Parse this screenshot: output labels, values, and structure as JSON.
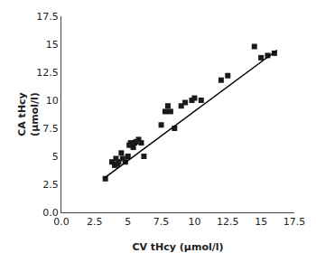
{
  "chart_data": {
    "type": "scatter",
    "xlabel": "CV tHcy (μmol/l)",
    "ylabel": "CA tHcy\n(μmol/l)",
    "xlim": [
      0.0,
      17.5
    ],
    "ylim": [
      0.0,
      17.5
    ],
    "xticks": [
      {
        "value": 0.0,
        "label": "0.0"
      },
      2.5,
      5,
      7.5,
      10,
      12.5,
      15,
      17.5
    ],
    "yticks": [
      {
        "value": 0.0,
        "label": "0.0"
      },
      2.5,
      5,
      7.5,
      10,
      12.5,
      15,
      17.5
    ],
    "grid": false,
    "series": [
      {
        "type": "scatter",
        "marker": "square",
        "color": "#1a1a1a",
        "x": [
          3.3,
          3.8,
          4.0,
          4.1,
          4.2,
          4.3,
          4.5,
          4.6,
          4.8,
          5.0,
          5.1,
          5.2,
          5.3,
          5.4,
          5.5,
          5.6,
          5.8,
          6.0,
          6.2,
          7.5,
          7.8,
          8.0,
          8.2,
          8.5,
          9.0,
          9.3,
          9.8,
          10.0,
          10.5,
          12.0,
          12.5,
          14.5,
          15.0,
          15.5,
          16.0
        ],
        "values": [
          3.0,
          4.5,
          4.2,
          4.8,
          4.3,
          4.5,
          5.3,
          4.8,
          4.5,
          5.0,
          6.0,
          6.2,
          6.0,
          5.8,
          6.2,
          6.3,
          6.5,
          6.2,
          5.0,
          7.8,
          9.0,
          9.5,
          9.0,
          7.5,
          9.5,
          9.8,
          10.0,
          10.2,
          10.0,
          11.8,
          12.2,
          14.8,
          13.8,
          14.0,
          14.2
        ]
      },
      {
        "type": "line",
        "line_style": "solid",
        "color": "#000000",
        "x": [
          3.2,
          16.2
        ],
        "values": [
          3.036,
          14.476
        ]
      }
    ]
  }
}
